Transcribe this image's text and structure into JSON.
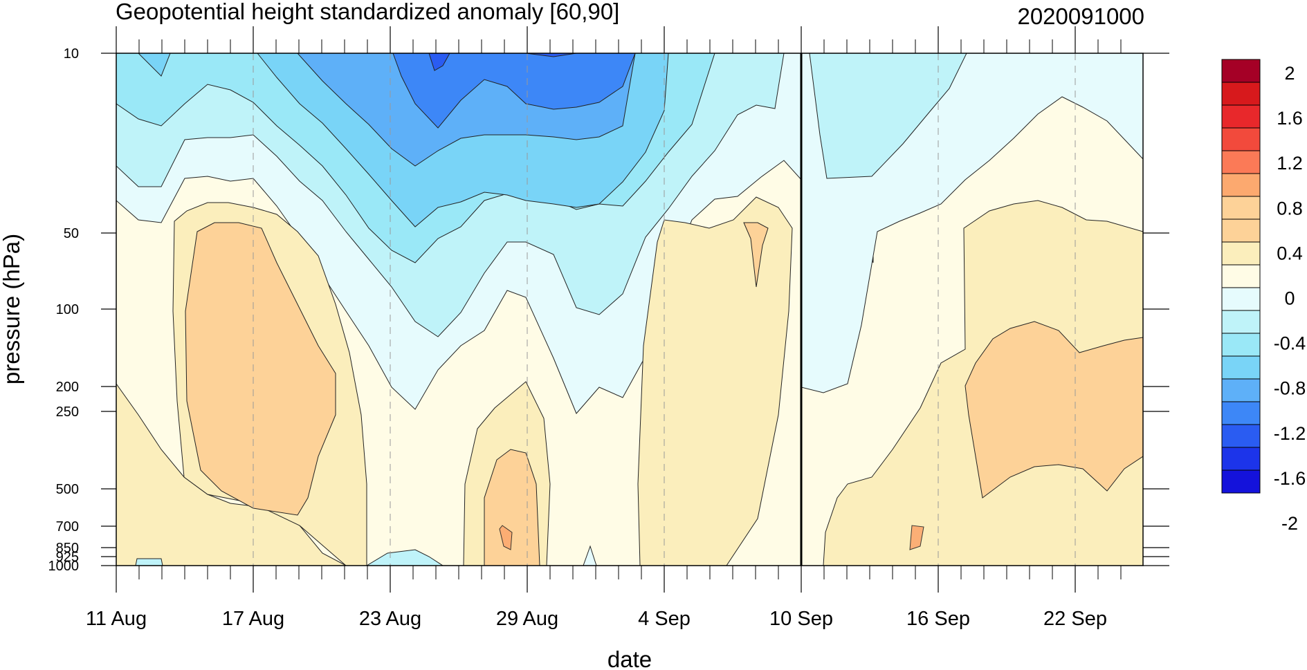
{
  "chart_data": {
    "type": "heatmap",
    "title": "Geopotential height standardized anomaly [60,90]",
    "date_label": "2020091000",
    "xlabel": "date",
    "ylabel": "pressure (hPa)",
    "x_ticks": [
      "11 Aug",
      "17 Aug",
      "23 Aug",
      "29 Aug",
      "4 Sep",
      "10 Sep",
      "16 Sep",
      "22 Sep"
    ],
    "y_ticks": [
      "10",
      "50",
      "100",
      "200",
      "250",
      "500",
      "700",
      "850",
      "925",
      "1000"
    ],
    "y_scale": "log",
    "colorbar": {
      "labels": [
        "2",
        "1.6",
        "1.2",
        "0.8",
        "0.4",
        "0",
        "-0.4",
        "-0.8",
        "-1.2",
        "-1.6",
        "-2"
      ],
      "colors": [
        "#a50026",
        "#d7191c",
        "#e8282b",
        "#f24a3c",
        "#fb7a57",
        "#fca96f",
        "#fdd298",
        "#fdd298",
        "#fbeebc",
        "#fffce6",
        "#e6fbfd",
        "#bff3f9",
        "#9ae8f7",
        "#79d4f7",
        "#5eb0f8",
        "#3d87f7",
        "#2a5cf2",
        "#1c34ea",
        "#1412db"
      ]
    },
    "forecast_start": "10 Sep",
    "x_range": [
      "11 Aug",
      "25 Sep"
    ],
    "y_range": [
      1000,
      10
    ]
  }
}
